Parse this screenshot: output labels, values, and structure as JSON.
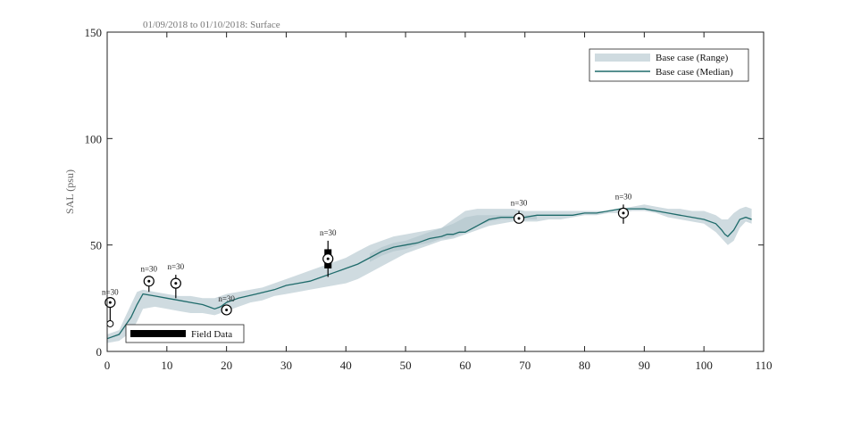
{
  "chart_data": {
    "type": "line",
    "title": "01/09/2018 to 01/10/2018: Surface",
    "xlabel": "",
    "ylabel": "SAL (psu)",
    "xlim": [
      0,
      110
    ],
    "ylim": [
      0,
      150
    ],
    "xticks": [
      "0",
      "10",
      "20",
      "30",
      "40",
      "50",
      "60",
      "70",
      "80",
      "90",
      "100",
      "110"
    ],
    "yticks": [
      "0",
      "50",
      "100",
      "150"
    ],
    "colors": {
      "range": "#cfdbe0",
      "range_dark": "#b6c9d0",
      "median": "#1f6b6b",
      "marker": "#000000"
    },
    "legend": {
      "placement": "top-right",
      "entries": [
        {
          "label": "Base case (Range)",
          "swatch": "range"
        },
        {
          "label": "Base case (Median)",
          "swatch": "median"
        }
      ]
    },
    "field_legend": {
      "placement": "bottom-left",
      "label": "Field Data"
    },
    "median": {
      "x": [
        0,
        2,
        3,
        4,
        5,
        6,
        8,
        10,
        12,
        14,
        16,
        17,
        18,
        19,
        20,
        21,
        22,
        25,
        28,
        30,
        32,
        34,
        36,
        38,
        40,
        42,
        44,
        46,
        48,
        50,
        52,
        54,
        56,
        57,
        58,
        59,
        60,
        62,
        64,
        66,
        68,
        70,
        72,
        74,
        76,
        78,
        80,
        82,
        84,
        86,
        88,
        90,
        92,
        94,
        96,
        98,
        100,
        102,
        103,
        103.5,
        104,
        105,
        106,
        107,
        108
      ],
      "y": [
        6,
        8,
        12,
        16,
        22,
        27,
        26,
        25,
        24,
        23,
        22,
        21,
        20,
        21,
        23,
        24,
        25,
        27,
        29,
        31,
        32,
        33,
        35,
        37,
        39,
        41,
        44,
        47,
        49,
        50,
        51,
        53,
        54,
        55,
        55,
        56,
        56,
        59,
        62,
        63,
        63,
        63,
        64,
        64,
        64,
        64,
        65,
        65,
        66,
        67,
        67,
        67,
        66,
        65,
        64,
        63,
        62,
        60,
        57,
        55,
        54,
        57,
        62,
        63,
        62
      ]
    },
    "range": {
      "x": [
        0,
        2,
        3,
        4,
        5,
        6,
        8,
        10,
        12,
        14,
        16,
        18,
        20,
        22,
        24,
        26,
        28,
        30,
        32,
        34,
        36,
        38,
        40,
        42,
        44,
        46,
        48,
        50,
        52,
        54,
        56,
        58,
        60,
        62,
        64,
        66,
        68,
        70,
        72,
        74,
        76,
        78,
        80,
        82,
        84,
        86,
        88,
        90,
        92,
        94,
        96,
        98,
        100,
        102,
        103,
        104,
        105,
        106,
        107,
        108
      ],
      "upper": [
        8,
        10,
        16,
        22,
        28,
        29,
        28,
        27,
        26,
        26,
        25,
        25,
        27,
        28,
        29,
        30,
        32,
        34,
        36,
        38,
        40,
        42,
        44,
        47,
        50,
        52,
        54,
        55,
        56,
        57,
        58,
        62,
        66,
        67,
        67,
        67,
        67,
        66,
        66,
        66,
        66,
        66,
        66,
        66,
        66,
        67,
        68,
        69,
        68,
        67,
        67,
        66,
        66,
        64,
        62,
        62,
        65,
        67,
        68,
        67
      ],
      "lower": [
        4,
        5,
        7,
        9,
        14,
        20,
        21,
        20,
        19,
        18,
        18,
        17,
        19,
        21,
        23,
        24,
        26,
        27,
        28,
        29,
        30,
        31,
        32,
        34,
        37,
        40,
        43,
        46,
        48,
        50,
        52,
        53,
        55,
        57,
        59,
        60,
        61,
        61,
        61,
        62,
        62,
        63,
        64,
        64,
        65,
        65,
        66,
        66,
        65,
        63,
        62,
        61,
        60,
        56,
        53,
        50,
        52,
        58,
        61,
        60
      ]
    },
    "range_dark": {
      "x": [
        44,
        46,
        48,
        50,
        52,
        54,
        55,
        56,
        57,
        58,
        60,
        62,
        64,
        66,
        68,
        70,
        72
      ],
      "upper": [
        46,
        49,
        51,
        52,
        54,
        56,
        57,
        58,
        59,
        60,
        63,
        64,
        64,
        64,
        64,
        64,
        64
      ],
      "lower": [
        42,
        45,
        47,
        48,
        50,
        51,
        52,
        53,
        53,
        54,
        56,
        59,
        61,
        62,
        62,
        62,
        62
      ]
    },
    "field_data": [
      {
        "x": 0.5,
        "median": 23,
        "low": 13,
        "high": 24,
        "n_label": "n=30",
        "type": "circle",
        "extra_circle": 13
      },
      {
        "x": 7,
        "median": 33,
        "low": 28,
        "high": 35,
        "n_label": "n=30",
        "type": "circle"
      },
      {
        "x": 11.5,
        "median": 32,
        "low": 25,
        "high": 36,
        "n_label": "n=30",
        "type": "circle"
      },
      {
        "x": 20,
        "median": 19.5,
        "low": 18,
        "high": 21,
        "n_label": "n=30",
        "type": "circle"
      },
      {
        "x": 37,
        "median": 43.5,
        "low": 35,
        "high": 52,
        "box_low": 39,
        "box_high": 48,
        "n_label": "n=30",
        "type": "box"
      },
      {
        "x": 69,
        "median": 62.5,
        "low": 61,
        "high": 66,
        "n_label": "n=30",
        "type": "circle"
      },
      {
        "x": 86.5,
        "median": 65,
        "low": 60,
        "high": 69,
        "n_label": "n=30",
        "type": "circle"
      }
    ]
  }
}
